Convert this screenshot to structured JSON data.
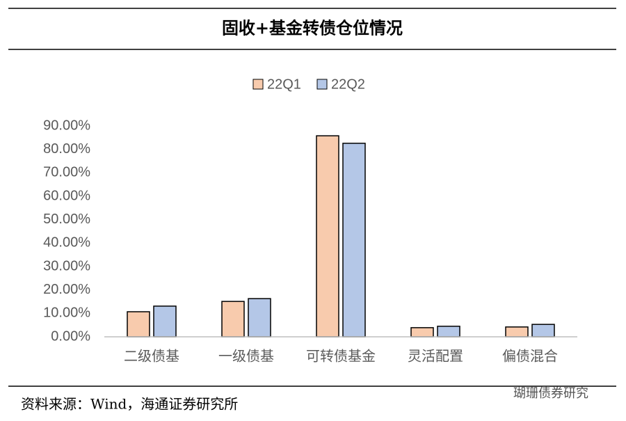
{
  "chart_data": {
    "type": "bar",
    "title": "固收+基金转债仓位情况",
    "categories": [
      "二级债基",
      "一级债基",
      "可转债基金",
      "灵活配置",
      "偏债混合"
    ],
    "series": [
      {
        "name": "22Q1",
        "color": "#F8CBAD",
        "values": [
          10.7,
          15.1,
          85.8,
          3.9,
          4.2
        ]
      },
      {
        "name": "22Q2",
        "color": "#B4C7E7",
        "values": [
          13.1,
          16.3,
          82.6,
          4.5,
          5.3
        ]
      }
    ],
    "ylim": [
      0,
      90
    ],
    "yticks": [
      {
        "value": 0,
        "label": "0.00%"
      },
      {
        "value": 10,
        "label": "10.00%"
      },
      {
        "value": 20,
        "label": "20.00%"
      },
      {
        "value": 30,
        "label": "30.00%"
      },
      {
        "value": 40,
        "label": "40.00%"
      },
      {
        "value": 50,
        "label": "50.00%"
      },
      {
        "value": 60,
        "label": "60.00%"
      },
      {
        "value": 70,
        "label": "70.00%"
      },
      {
        "value": 80,
        "label": "80.00%"
      },
      {
        "value": 90,
        "label": "90.00%"
      }
    ],
    "grid": false,
    "legend": "top",
    "source": "资料来源：Wind，海通证券研究所",
    "watermark": "瑚珊债券研究"
  }
}
